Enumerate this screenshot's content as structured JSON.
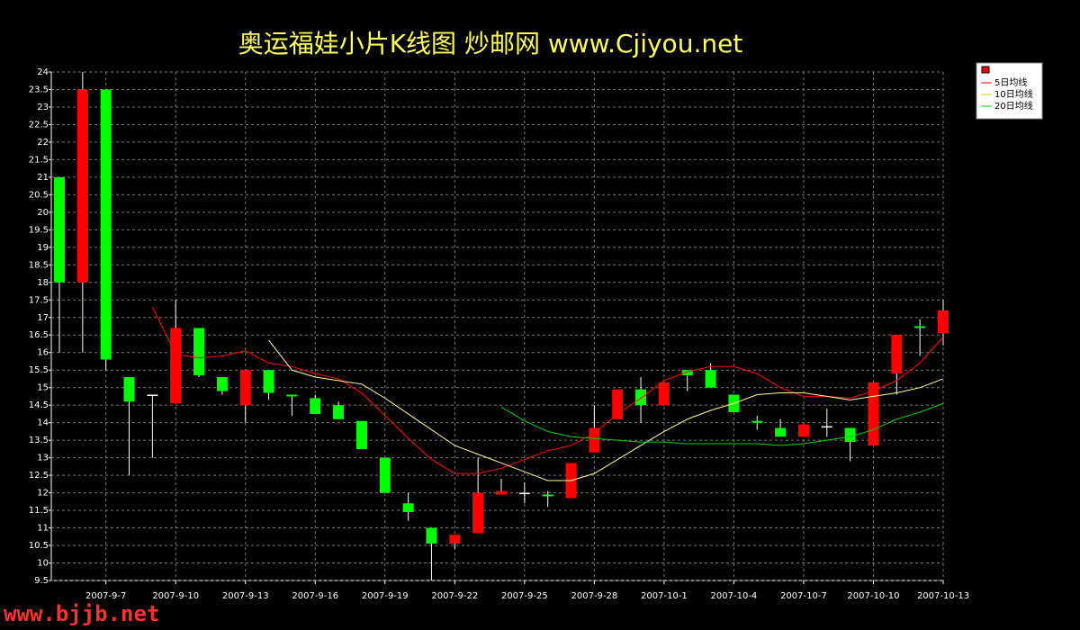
{
  "chart_data": {
    "type": "candlestick",
    "title": "奥运福娃小片K线图  炒邮网 www.Cjiyou.net",
    "watermark": "www.bjjb.net",
    "categories": [
      null,
      null,
      "2007-9-7",
      null,
      null,
      "2007-9-10",
      null,
      null,
      "2007-9-13",
      null,
      null,
      "2007-9-16",
      null,
      null,
      "2007-9-19",
      null,
      null,
      "2007-9-22",
      null,
      null,
      "2007-9-25",
      null,
      null,
      "2007-9-28",
      null,
      null,
      "2007-10-1",
      null,
      null,
      "2007-10-4",
      null,
      null,
      "2007-10-7",
      null,
      null,
      "2007-10-10",
      null,
      null,
      "2007-10-13"
    ],
    "open": [
      21,
      18,
      23.5,
      15.3,
      14.8,
      14.55,
      16.7,
      15.3,
      14.5,
      15.5,
      14.8,
      14.7,
      14.5,
      14.05,
      13,
      11.7,
      11,
      10.55,
      10.85,
      11.95,
      12,
      11.95,
      11.85,
      13.15,
      14.1,
      14.95,
      14.5,
      15.5,
      15.5,
      14.8,
      14.05,
      13.85,
      13.6,
      13.9,
      13.85,
      13.35,
      15.4,
      16.75,
      16.55
    ],
    "high": [
      21,
      24,
      23.5,
      15.3,
      14.8,
      17.5,
      16.7,
      15.3,
      15.5,
      15.5,
      14.8,
      14.8,
      14.6,
      14.05,
      13,
      12,
      11,
      10.8,
      13,
      12.4,
      12.3,
      12.05,
      12.85,
      14.5,
      14.95,
      15.3,
      15.15,
      15.5,
      15.7,
      14.8,
      14.2,
      14.1,
      13.95,
      14.4,
      13.85,
      15.15,
      16.5,
      16.95,
      17.5
    ],
    "low": [
      16,
      16,
      15.5,
      12.5,
      13,
      14.55,
      15.3,
      14.8,
      14,
      14.65,
      14.2,
      14.25,
      14.1,
      13.25,
      12,
      11.2,
      9.5,
      10.4,
      10.85,
      11.95,
      11.7,
      11.6,
      11.85,
      13.15,
      14.1,
      14,
      14.5,
      14.9,
      15,
      14.3,
      13.8,
      13.6,
      13.6,
      13.6,
      12.9,
      13.35,
      14.8,
      15.9,
      16.2
    ],
    "close": [
      18,
      23.5,
      15.8,
      14.6,
      14.8,
      16.7,
      15.35,
      14.9,
      15.5,
      14.85,
      14.75,
      14.25,
      14.1,
      13.25,
      12,
      11.45,
      10.55,
      10.8,
      12,
      12.05,
      12,
      11.9,
      12.85,
      13.85,
      14.95,
      14.5,
      15.15,
      15.35,
      15,
      14.3,
      14,
      13.6,
      13.95,
      13.9,
      13.45,
      15.15,
      16.5,
      16.7,
      17.2
    ],
    "up_color": "#ff0000",
    "down_color": "#00ff00",
    "series": [
      {
        "name": "5日均线",
        "color": "#ff0000",
        "values": [
          null,
          null,
          null,
          null,
          17.3,
          15.95,
          15.85,
          15.9,
          16.05,
          15.7,
          15.6,
          15.4,
          15.25,
          14.85,
          14.2,
          13.55,
          12.95,
          12.55,
          12.55,
          12.7,
          12.95,
          13.2,
          13.35,
          13.7,
          14.25,
          14.7,
          15.2,
          15.45,
          15.6,
          15.6,
          15.4,
          15,
          14.75,
          14.75,
          14.7,
          14.9,
          15.2,
          15.7,
          16.45
        ]
      },
      {
        "name": "10日均线",
        "color": "#ffff99",
        "values": [
          null,
          null,
          null,
          null,
          null,
          null,
          null,
          null,
          null,
          16.35,
          15.5,
          15.3,
          15.2,
          15.1,
          14.7,
          14.25,
          13.8,
          13.35,
          13.1,
          12.85,
          12.6,
          12.35,
          12.35,
          12.55,
          12.95,
          13.35,
          13.75,
          14.1,
          14.35,
          14.55,
          14.8,
          14.85,
          14.85,
          14.75,
          14.65,
          14.75,
          14.85,
          15,
          15.25
        ]
      },
      {
        "name": "20日均线",
        "color": "#00cc00",
        "values": [
          null,
          null,
          null,
          null,
          null,
          null,
          null,
          null,
          null,
          null,
          null,
          null,
          null,
          null,
          null,
          null,
          null,
          null,
          null,
          14.45,
          14.05,
          13.75,
          13.6,
          13.55,
          13.5,
          13.45,
          13.45,
          13.4,
          13.4,
          13.4,
          13.4,
          13.35,
          13.4,
          13.5,
          13.6,
          13.8,
          14.1,
          14.3,
          14.55
        ]
      }
    ],
    "ylim": [
      9.5,
      24
    ],
    "yticks": [
      9.5,
      10,
      10.5,
      11,
      11.5,
      12,
      12.5,
      13,
      13.5,
      14,
      14.5,
      15,
      15.5,
      16,
      16.5,
      17,
      17.5,
      18,
      18.5,
      19,
      19.5,
      20,
      20.5,
      21,
      21.5,
      22,
      22.5,
      23,
      23.5,
      24
    ],
    "grid": true
  }
}
